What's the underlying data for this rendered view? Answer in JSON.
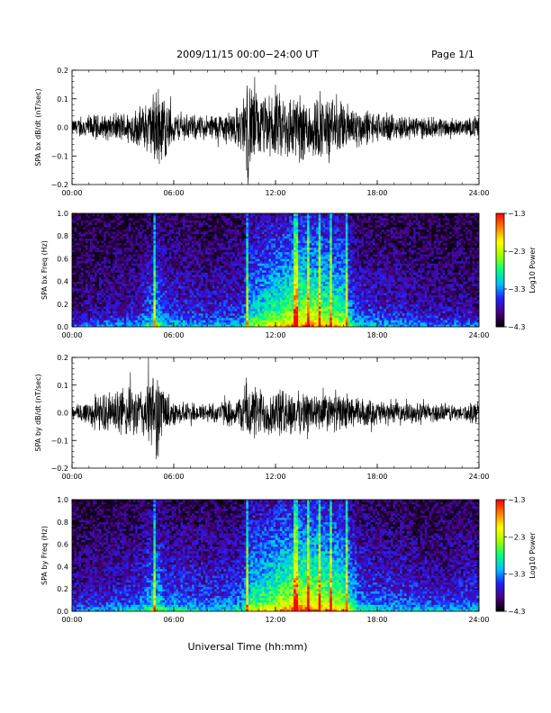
{
  "header": {
    "title": "2009/11/15  00:00−24:00 UT",
    "page": "Page 1/1"
  },
  "footer": {
    "xlabel": "Universal Time (hh:mm)"
  },
  "colors": {
    "trace": "#000000",
    "colormap": [
      "#000000",
      "#4b0082",
      "#2020ff",
      "#00bfff",
      "#00ff80",
      "#a0ff00",
      "#ffff00",
      "#ff8000",
      "#ff0000"
    ]
  },
  "chart_data": [
    {
      "type": "line",
      "ylabel": "SPA bx dB/dt (nT/sec)",
      "x_ticks": [
        "00:00",
        "06:00",
        "12:00",
        "18:00",
        "24:00"
      ],
      "xlim_hours": [
        0,
        24
      ],
      "ylim": [
        -0.2,
        0.2
      ],
      "y_ticks": [
        "0.2",
        "0.1",
        "0.0",
        "−0.1",
        "−0.2"
      ],
      "y_tick_values": [
        0.2,
        0.1,
        0.0,
        -0.1,
        -0.2
      ],
      "envelope": {
        "hours": [
          0,
          1,
          2,
          3,
          4,
          4.7,
          5,
          5.3,
          6,
          7,
          8,
          9,
          10,
          10.3,
          10.6,
          11,
          12,
          13,
          14,
          15,
          16,
          17,
          18,
          19,
          20,
          21,
          22,
          23,
          24
        ],
        "amplitude": [
          0.03,
          0.05,
          0.05,
          0.06,
          0.08,
          0.12,
          0.18,
          0.15,
          0.06,
          0.05,
          0.05,
          0.06,
          0.09,
          0.2,
          0.18,
          0.12,
          0.13,
          0.14,
          0.13,
          0.12,
          0.1,
          0.08,
          0.06,
          0.05,
          0.05,
          0.04,
          0.04,
          0.03,
          0.05
        ]
      },
      "grid": false
    },
    {
      "type": "heatmap",
      "ylabel": "SPA bx Freq (Hz)",
      "x_ticks": [
        "00:00",
        "06:00",
        "12:00",
        "18:00",
        "24:00"
      ],
      "xlim_hours": [
        0,
        24
      ],
      "ylim": [
        0.0,
        1.0
      ],
      "y_ticks": [
        "1.0",
        "0.8",
        "0.6",
        "0.4",
        "0.2",
        "0.0"
      ],
      "y_tick_values": [
        1.0,
        0.8,
        0.6,
        0.4,
        0.2,
        0.0
      ],
      "colorbar": {
        "label": "Log10 Power",
        "ticks": [
          "−1.3",
          "−2.3",
          "−3.3",
          "−4.3"
        ],
        "tick_values": [
          -1.3,
          -2.3,
          -3.3,
          -4.3
        ],
        "range": [
          -4.3,
          -1.3
        ]
      },
      "activity": {
        "hours": [
          0,
          2,
          4,
          5,
          5.5,
          8,
          10,
          10.5,
          11,
          12,
          13,
          14,
          15,
          16,
          16.5,
          17,
          19,
          22,
          24
        ],
        "level": [
          0.15,
          0.2,
          0.25,
          0.45,
          0.3,
          0.25,
          0.3,
          0.5,
          0.55,
          0.65,
          0.75,
          0.8,
          0.7,
          0.65,
          0.4,
          0.3,
          0.25,
          0.2,
          0.2
        ]
      },
      "vertical_streaks_hours": [
        4.9,
        10.3,
        13.2,
        13.9,
        14.6,
        15.3,
        16.2
      ]
    },
    {
      "type": "line",
      "ylabel": "SPA by dB/dt (nT/sec)",
      "x_ticks": [
        "00:00",
        "06:00",
        "12:00",
        "18:00",
        "24:00"
      ],
      "xlim_hours": [
        0,
        24
      ],
      "ylim": [
        -0.2,
        0.2
      ],
      "y_ticks": [
        "0.2",
        "0.1",
        "0.0",
        "−0.1",
        "−0.2"
      ],
      "y_tick_values": [
        0.2,
        0.1,
        0.0,
        -0.1,
        -0.2
      ],
      "envelope": {
        "hours": [
          0,
          1,
          2,
          3,
          4,
          4.7,
          5,
          5.3,
          6,
          7,
          8,
          9,
          10,
          10.3,
          10.6,
          11,
          12,
          13,
          14,
          15,
          16,
          17,
          18,
          19,
          20,
          21,
          22,
          23,
          24
        ],
        "amplitude": [
          0.03,
          0.06,
          0.08,
          0.1,
          0.1,
          0.15,
          0.2,
          0.12,
          0.05,
          0.04,
          0.04,
          0.05,
          0.07,
          0.15,
          0.12,
          0.1,
          0.1,
          0.09,
          0.08,
          0.08,
          0.07,
          0.06,
          0.05,
          0.04,
          0.04,
          0.04,
          0.04,
          0.03,
          0.05
        ]
      },
      "grid": false
    },
    {
      "type": "heatmap",
      "ylabel": "SPA by Freq (Hz)",
      "x_ticks": [
        "00:00",
        "06:00",
        "12:00",
        "18:00",
        "24:00"
      ],
      "xlim_hours": [
        0,
        24
      ],
      "ylim": [
        0.0,
        1.0
      ],
      "y_ticks": [
        "1.0",
        "0.8",
        "0.6",
        "0.4",
        "0.2",
        "0.0"
      ],
      "y_tick_values": [
        1.0,
        0.8,
        0.6,
        0.4,
        0.2,
        0.0
      ],
      "colorbar": {
        "label": "Log10 Power",
        "ticks": [
          "−1.3",
          "−2.3",
          "−3.3",
          "−4.3"
        ],
        "tick_values": [
          -1.3,
          -2.3,
          -3.3,
          -4.3
        ],
        "range": [
          -4.3,
          -1.3
        ]
      },
      "activity": {
        "hours": [
          0,
          2,
          4,
          5,
          5.5,
          8,
          10,
          10.5,
          11,
          12,
          13,
          14,
          15,
          16,
          16.5,
          17,
          19,
          22,
          24
        ],
        "level": [
          0.2,
          0.25,
          0.3,
          0.5,
          0.35,
          0.3,
          0.35,
          0.6,
          0.6,
          0.7,
          0.8,
          0.85,
          0.75,
          0.7,
          0.5,
          0.35,
          0.3,
          0.25,
          0.3
        ]
      },
      "vertical_streaks_hours": [
        4.9,
        10.3,
        13.2,
        13.9,
        14.6,
        15.3,
        16.2
      ]
    }
  ]
}
